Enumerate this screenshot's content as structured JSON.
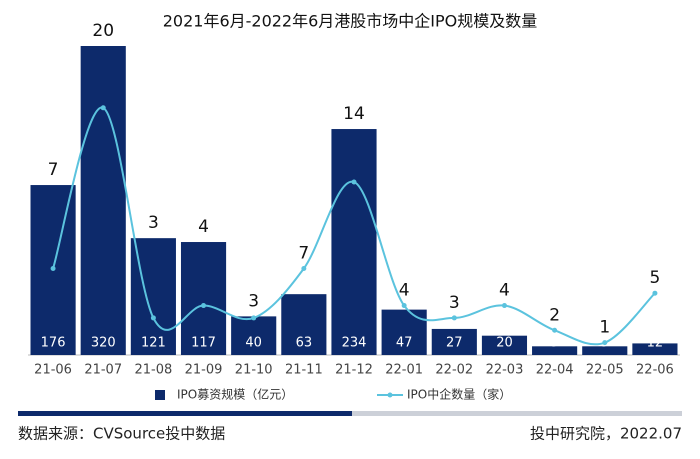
{
  "chart_data": {
    "type": "bar-line",
    "title": "2021年6月-2022年6月港股市场中企IPO规模及数量",
    "categories": [
      "21-06",
      "21-07",
      "21-08",
      "21-09",
      "21-10",
      "21-11",
      "21-12",
      "22-01",
      "22-02",
      "22-03",
      "22-04",
      "22-05",
      "22-06"
    ],
    "series": [
      {
        "name": "IPO募资规模（亿元）",
        "type": "bar",
        "color": "#0d2a6b",
        "values": [
          176,
          320,
          121,
          117,
          40,
          63,
          234,
          47,
          27,
          20,
          9,
          9,
          12
        ]
      },
      {
        "name": "IPO中企数量（家）",
        "type": "line",
        "color": "#5bc3de",
        "axis": "y2",
        "values": [
          7,
          20,
          3,
          4,
          3,
          7,
          14,
          4,
          3,
          4,
          2,
          1,
          5
        ]
      }
    ],
    "ylim": [
      0,
      320
    ],
    "y2lim": [
      0,
      25
    ],
    "legend": "bottom",
    "source": "数据来源：CVSource投中数据",
    "credit": "投中研究院，2022.07"
  }
}
